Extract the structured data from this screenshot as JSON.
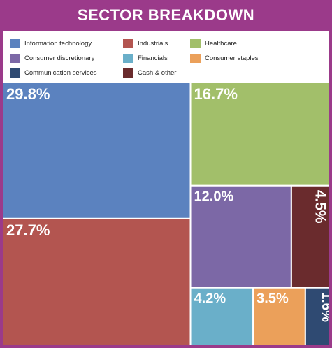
{
  "title": "SECTOR BREAKDOWN",
  "chart_data": {
    "type": "treemap",
    "title": "SECTOR BREAKDOWN",
    "unit": "%",
    "series": [
      {
        "name": "Information technology",
        "value": 29.8,
        "label": "29.8%",
        "color": "#5b82bf"
      },
      {
        "name": "Industrials",
        "value": 27.7,
        "label": "27.7%",
        "color": "#b35550"
      },
      {
        "name": "Healthcare",
        "value": 16.7,
        "label": "16.7%",
        "color": "#a2bf6a"
      },
      {
        "name": "Consumer discretionary",
        "value": 12.0,
        "label": "12.0%",
        "color": "#7c68a6"
      },
      {
        "name": "Cash & other",
        "value": 4.5,
        "label": "4.5%",
        "color": "#6a2b2d"
      },
      {
        "name": "Financials",
        "value": 4.2,
        "label": "4.2%",
        "color": "#6aafc9"
      },
      {
        "name": "Consumer staples",
        "value": 3.5,
        "label": "3.5%",
        "color": "#eba05a"
      },
      {
        "name": "Communication services",
        "value": 1.6,
        "label": "1.6%",
        "color": "#2f4a72"
      }
    ],
    "legend": [
      "Information technology",
      "Industrials",
      "Healthcare",
      "Consumer discretionary",
      "Financials",
      "Consumer staples",
      "Communication services",
      "Cash & other"
    ],
    "legend_position": "top"
  }
}
